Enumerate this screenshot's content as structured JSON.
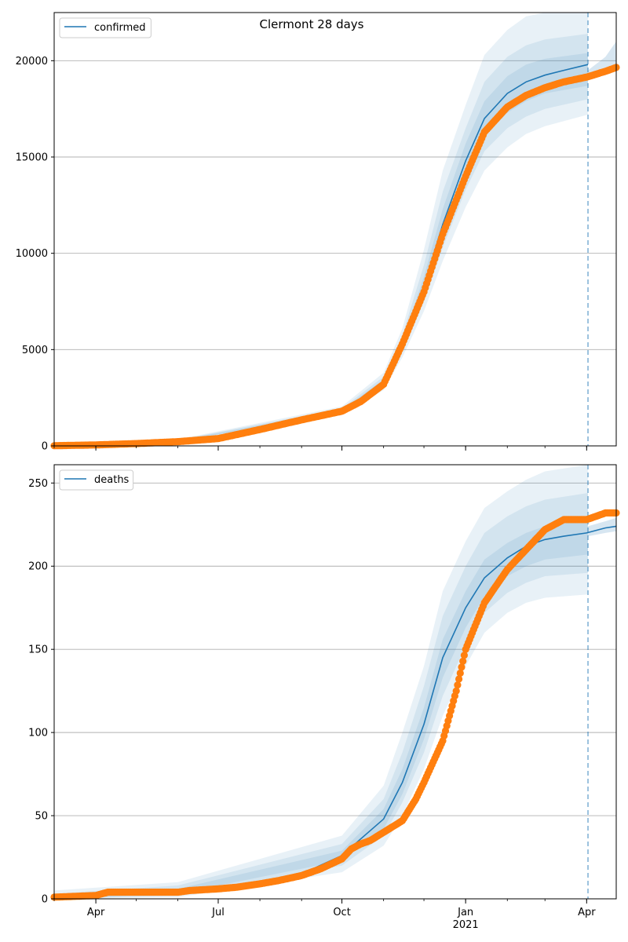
{
  "figure": {
    "title": "Clermont 28 days"
  },
  "x_axis": {
    "type": "date",
    "range": [
      "2020-03-01",
      "2021-04-23"
    ],
    "ticks": [
      {
        "date": "2020-04-01",
        "label": "Apr"
      },
      {
        "date": "2020-07-01",
        "label": "Jul"
      },
      {
        "date": "2020-10-01",
        "label": "Oct"
      },
      {
        "date": "2021-01-01",
        "label": "Jan",
        "sublabel": "2021"
      },
      {
        "date": "2021-04-01",
        "label": "Apr"
      }
    ],
    "minor_ticks_monthly": true
  },
  "forecast_start": "2021-04-02",
  "colors": {
    "model_line": "#1f77b4",
    "band": "#1f77b4",
    "observed": "#ff7f0e",
    "forecast_line": "#1f77b4",
    "grid": "#b0b0b0"
  },
  "chart_data": [
    {
      "type": "line",
      "legend": {
        "label": "confirmed",
        "placement": "top-left"
      },
      "ylim": [
        0,
        22500
      ],
      "yticks": [
        0,
        5000,
        10000,
        15000,
        20000
      ],
      "grid": "horizontal",
      "model_line": {
        "x": [
          "2020-03-01",
          "2020-04-01",
          "2020-05-01",
          "2020-06-01",
          "2020-07-01",
          "2020-08-01",
          "2020-09-01",
          "2020-10-01",
          "2020-10-15",
          "2020-11-01",
          "2020-11-15",
          "2020-12-01",
          "2020-12-15",
          "2021-01-01",
          "2021-01-15",
          "2021-02-01",
          "2021-02-15",
          "2021-03-01",
          "2021-03-15",
          "2021-04-02"
        ],
        "y": [
          30,
          60,
          130,
          250,
          400,
          900,
          1400,
          1800,
          2300,
          3300,
          5200,
          8300,
          11500,
          14800,
          17000,
          18300,
          18900,
          19250,
          19500,
          19800
        ]
      },
      "bands": [
        {
          "x": [
            "2020-03-01",
            "2020-06-01",
            "2020-10-01",
            "2020-11-01",
            "2020-11-15",
            "2020-12-01",
            "2020-12-15",
            "2021-01-01",
            "2021-01-15",
            "2021-02-01",
            "2021-02-15",
            "2021-03-01",
            "2021-04-02"
          ],
          "lower": [
            0,
            180,
            1600,
            2900,
            4600,
            7000,
            9600,
            12400,
            14300,
            15500,
            16200,
            16600,
            17200
          ],
          "upper": [
            90,
            340,
            2050,
            3800,
            6100,
            10200,
            14300,
            17700,
            20300,
            21600,
            22300,
            22500,
            22500
          ]
        },
        {
          "x": [
            "2020-03-01",
            "2020-06-01",
            "2020-10-01",
            "2020-11-01",
            "2020-11-15",
            "2020-12-01",
            "2020-12-15",
            "2021-01-01",
            "2021-01-15",
            "2021-02-01",
            "2021-02-15",
            "2021-03-01",
            "2021-04-02"
          ],
          "lower": [
            10,
            205,
            1680,
            3050,
            4850,
            7500,
            10300,
            13300,
            15300,
            16500,
            17100,
            17500,
            18000
          ],
          "upper": [
            70,
            305,
            1950,
            3600,
            5750,
            9400,
            13200,
            16500,
            18900,
            20200,
            20800,
            21100,
            21400
          ]
        },
        {
          "x": [
            "2020-03-01",
            "2020-06-01",
            "2020-10-01",
            "2020-11-01",
            "2020-11-15",
            "2020-12-01",
            "2020-12-15",
            "2021-01-01",
            "2021-01-15",
            "2021-02-01",
            "2021-02-15",
            "2021-03-01",
            "2021-04-02"
          ],
          "lower": [
            20,
            225,
            1740,
            3150,
            5000,
            7900,
            10900,
            14000,
            16100,
            17300,
            17900,
            18300,
            18700
          ],
          "upper": [
            50,
            280,
            1880,
            3450,
            5450,
            8800,
            12300,
            15700,
            17900,
            19200,
            19800,
            20100,
            20400
          ]
        }
      ],
      "forecast_band": {
        "x": [
          "2021-04-02",
          "2021-04-15",
          "2021-04-23"
        ],
        "lower": [
          19050,
          19250,
          19450
        ],
        "upper": [
          19500,
          20200,
          21000
        ]
      },
      "observed": {
        "name": "",
        "x": [
          "2020-03-01",
          "2020-04-01",
          "2020-05-01",
          "2020-06-01",
          "2020-07-01",
          "2020-08-01",
          "2020-09-01",
          "2020-10-01",
          "2020-10-15",
          "2020-11-01",
          "2020-11-15",
          "2020-12-01",
          "2020-12-15",
          "2021-01-01",
          "2021-01-15",
          "2021-02-01",
          "2021-02-15",
          "2021-03-01",
          "2021-03-15",
          "2021-04-01",
          "2021-04-15",
          "2021-04-23"
        ],
        "y": [
          10,
          50,
          120,
          220,
          380,
          850,
          1350,
          1800,
          2300,
          3200,
          5300,
          8000,
          11000,
          14000,
          16300,
          17600,
          18200,
          18600,
          18900,
          19150,
          19450,
          19650
        ]
      }
    },
    {
      "type": "line",
      "legend": {
        "label": "deaths",
        "placement": "top-left"
      },
      "ylim": [
        0,
        261
      ],
      "yticks": [
        0,
        50,
        100,
        150,
        200,
        250
      ],
      "grid": "horizontal",
      "model_line": {
        "x": [
          "2020-03-01",
          "2020-04-01",
          "2020-05-01",
          "2020-06-01",
          "2020-07-01",
          "2020-08-01",
          "2020-09-01",
          "2020-10-01",
          "2020-10-15",
          "2020-11-01",
          "2020-11-15",
          "2020-12-01",
          "2020-12-15",
          "2021-01-01",
          "2021-01-15",
          "2021-02-01",
          "2021-02-15",
          "2021-03-01",
          "2021-03-15",
          "2021-04-01",
          "2021-04-15",
          "2021-04-23"
        ],
        "y": [
          1,
          2,
          3,
          4,
          5,
          8,
          15,
          26,
          36,
          48,
          70,
          105,
          145,
          175,
          193,
          205,
          212,
          216,
          218,
          220,
          223,
          224
        ]
      },
      "bands": [
        {
          "x": [
            "2020-03-01",
            "2020-06-01",
            "2020-10-01",
            "2020-11-01",
            "2020-11-15",
            "2020-12-01",
            "2020-12-15",
            "2021-01-01",
            "2021-01-15",
            "2021-02-01",
            "2021-02-15",
            "2021-03-01",
            "2021-04-02"
          ],
          "lower": [
            0,
            1,
            16,
            32,
            50,
            78,
            110,
            140,
            160,
            172,
            178,
            181,
            183
          ],
          "upper": [
            5,
            10,
            38,
            68,
            100,
            140,
            185,
            215,
            235,
            245,
            252,
            257,
            261
          ]
        },
        {
          "x": [
            "2020-03-01",
            "2020-06-01",
            "2020-10-01",
            "2020-11-01",
            "2020-11-15",
            "2020-12-01",
            "2020-12-15",
            "2021-01-01",
            "2021-01-15",
            "2021-02-01",
            "2021-02-15",
            "2021-03-01",
            "2021-04-02"
          ],
          "lower": [
            0,
            2,
            20,
            38,
            58,
            88,
            122,
            152,
            172,
            184,
            190,
            194,
            196
          ],
          "upper": [
            3,
            8,
            33,
            60,
            88,
            128,
            170,
            200,
            220,
            230,
            236,
            240,
            244
          ]
        },
        {
          "x": [
            "2020-03-01",
            "2020-06-01",
            "2020-10-01",
            "2020-11-01",
            "2020-11-15",
            "2020-12-01",
            "2020-12-15",
            "2021-01-01",
            "2021-01-15",
            "2021-02-01",
            "2021-02-15",
            "2021-03-01",
            "2021-04-02"
          ],
          "lower": [
            0,
            3,
            23,
            42,
            63,
            96,
            133,
            163,
            182,
            194,
            200,
            204,
            207
          ],
          "upper": [
            2,
            6,
            29,
            54,
            78,
            115,
            156,
            185,
            204,
            214,
            220,
            224,
            228
          ]
        }
      ],
      "forecast_band": {
        "x": [
          "2021-04-02",
          "2021-04-15",
          "2021-04-23"
        ],
        "lower": [
          218,
          220,
          221
        ],
        "upper": [
          224,
          227,
          229
        ]
      },
      "observed": {
        "name": "",
        "x": [
          "2020-03-01",
          "2020-04-01",
          "2020-04-10",
          "2020-05-01",
          "2020-06-01",
          "2020-06-10",
          "2020-07-01",
          "2020-07-15",
          "2020-08-01",
          "2020-08-15",
          "2020-09-01",
          "2020-09-15",
          "2020-10-01",
          "2020-10-08",
          "2020-10-15",
          "2020-10-22",
          "2020-11-01",
          "2020-11-15",
          "2020-11-25",
          "2020-12-01",
          "2020-12-15",
          "2020-12-25",
          "2021-01-01",
          "2021-01-15",
          "2021-02-01",
          "2021-02-15",
          "2021-03-01",
          "2021-03-15",
          "2021-04-01",
          "2021-04-15",
          "2021-04-23"
        ],
        "y": [
          1,
          2,
          4,
          4,
          4,
          5,
          6,
          7,
          9,
          11,
          14,
          18,
          24,
          30,
          33,
          35,
          40,
          47,
          60,
          70,
          95,
          125,
          150,
          178,
          198,
          210,
          222,
          228,
          228,
          232,
          232
        ]
      }
    }
  ]
}
